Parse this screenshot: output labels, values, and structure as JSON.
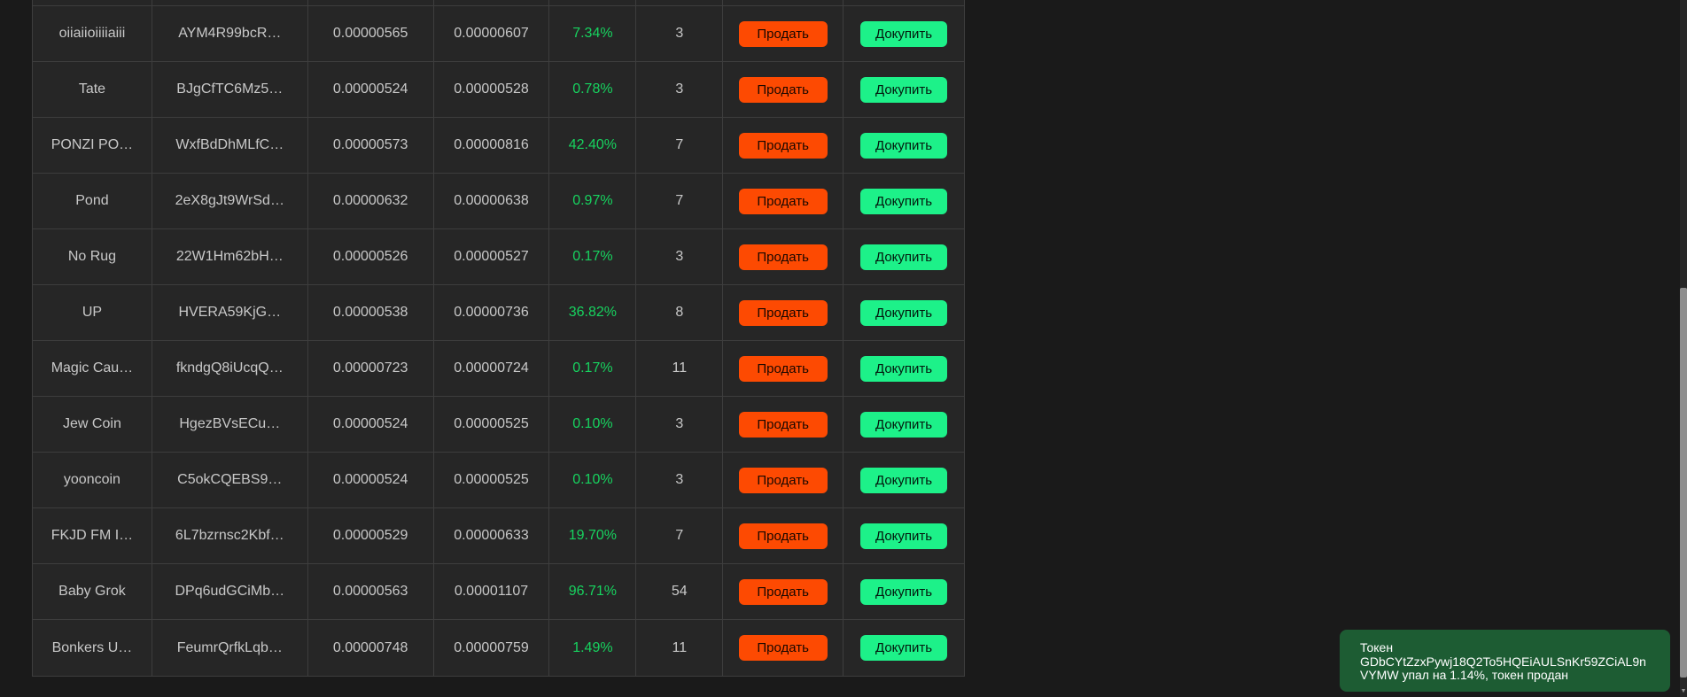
{
  "table": {
    "sell_label": "Продать",
    "buy_label": "Докупить",
    "rows": [
      {
        "name": "oiiaiioiiiiaiii",
        "address": "AYM4R99bcR…",
        "buy_price": "0.00000565",
        "current_price": "0.00000607",
        "change_percent": "7.34%",
        "count": "3"
      },
      {
        "name": "Tate",
        "address": "BJgCfTC6Mz5…",
        "buy_price": "0.00000524",
        "current_price": "0.00000528",
        "change_percent": "0.78%",
        "count": "3"
      },
      {
        "name": "PONZI PO…",
        "address": "WxfBdDhMLfC…",
        "buy_price": "0.00000573",
        "current_price": "0.00000816",
        "change_percent": "42.40%",
        "count": "7"
      },
      {
        "name": "Pond",
        "address": "2eX8gJt9WrSd…",
        "buy_price": "0.00000632",
        "current_price": "0.00000638",
        "change_percent": "0.97%",
        "count": "7"
      },
      {
        "name": "No Rug",
        "address": "22W1Hm62bH…",
        "buy_price": "0.00000526",
        "current_price": "0.00000527",
        "change_percent": "0.17%",
        "count": "3"
      },
      {
        "name": "UP",
        "address": "HVERA59KjG…",
        "buy_price": "0.00000538",
        "current_price": "0.00000736",
        "change_percent": "36.82%",
        "count": "8"
      },
      {
        "name": "Magic Cau…",
        "address": "fkndgQ8iUcqQ…",
        "buy_price": "0.00000723",
        "current_price": "0.00000724",
        "change_percent": "0.17%",
        "count": "11"
      },
      {
        "name": "Jew Coin",
        "address": "HgezBVsECu…",
        "buy_price": "0.00000524",
        "current_price": "0.00000525",
        "change_percent": "0.10%",
        "count": "3"
      },
      {
        "name": "yooncoin",
        "address": "C5okCQEBS9…",
        "buy_price": "0.00000524",
        "current_price": "0.00000525",
        "change_percent": "0.10%",
        "count": "3"
      },
      {
        "name": "FKJD FM I…",
        "address": "6L7bzrnsc2Kbf…",
        "buy_price": "0.00000529",
        "current_price": "0.00000633",
        "change_percent": "19.70%",
        "count": "7"
      },
      {
        "name": "Baby Grok",
        "address": "DPq6udGCiMb…",
        "buy_price": "0.00000563",
        "current_price": "0.00001107",
        "change_percent": "96.71%",
        "count": "54"
      },
      {
        "name": "Bonkers U…",
        "address": "FeumrQrfkLqb…",
        "buy_price": "0.00000748",
        "current_price": "0.00000759",
        "change_percent": "1.49%",
        "count": "11"
      }
    ]
  },
  "toast": {
    "message": "Токен GDbCYtZzxPywj18Q2To5HQEiAULSnKr59ZCiAL9nVYMW упал на 1.14%, токен продан"
  },
  "scrollbar": {
    "arrow_down": "▼"
  },
  "colors": {
    "page_bg": "#1a1a1a",
    "table_bg": "#262626",
    "border": "#3d3d3d",
    "text": "#c8c8c8",
    "percent_green": "#17d35f",
    "sell_button": "#fd4a02",
    "buy_button": "#1df189",
    "toast_bg": "#1d5c33"
  }
}
